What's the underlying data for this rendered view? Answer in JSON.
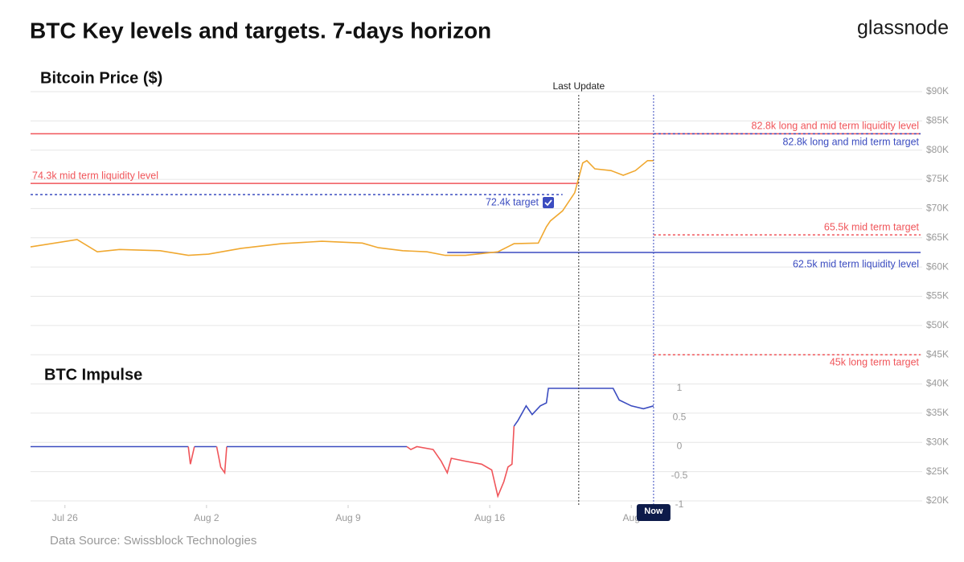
{
  "header": {
    "title": "BTC Key levels and targets. 7-days horizon",
    "brand": "glassnode"
  },
  "chart_data": [
    {
      "type": "line",
      "title": "Bitcoin Price ($)",
      "x": [
        -1.7,
        0.6,
        1.6,
        2.7,
        4.7,
        6.1,
        7.1,
        8.7,
        10.7,
        12.7,
        14.7,
        15.5,
        16.7,
        17.9,
        18.8,
        19.8,
        21.4,
        22.2,
        23.4,
        23.8,
        24.0,
        24.6,
        25.2,
        25.6,
        25.8,
        26.2,
        27.0,
        27.6,
        28.2,
        28.8,
        29.1
      ],
      "series": [
        {
          "color": "#f0a830",
          "values": [
            63450,
            64700,
            62600,
            63000,
            62800,
            62000,
            62200,
            63200,
            64000,
            64400,
            64100,
            63300,
            62800,
            62600,
            62000,
            62000,
            62600,
            64000,
            64100,
            66900,
            67900,
            69600,
            72700,
            77800,
            78200,
            76800,
            76500,
            75700,
            76500,
            78200,
            78200
          ]
        }
      ],
      "xlim": [
        -1.7,
        42.3
      ],
      "xticks": [
        {
          "value": 0,
          "label": "Jul 26"
        },
        {
          "value": 7,
          "label": "Aug 2"
        },
        {
          "value": 14,
          "label": "Aug 9"
        },
        {
          "value": 21,
          "label": "Aug 16"
        },
        {
          "value": 28,
          "label": "Aug"
        }
      ],
      "ylim": [
        20000,
        90000
      ],
      "yticks": [
        {
          "value": 90000,
          "label": "$90K"
        },
        {
          "value": 85000,
          "label": "$85K"
        },
        {
          "value": 80000,
          "label": "$80K"
        },
        {
          "value": 75000,
          "label": "$75K"
        },
        {
          "value": 70000,
          "label": "$70K"
        },
        {
          "value": 65000,
          "label": "$65K"
        },
        {
          "value": 60000,
          "label": "$60K"
        },
        {
          "value": 55000,
          "label": "$55K"
        },
        {
          "value": 50000,
          "label": "$50K"
        },
        {
          "value": 45000,
          "label": "$45K"
        },
        {
          "value": 40000,
          "label": "$40K"
        },
        {
          "value": 35000,
          "label": "$35K"
        },
        {
          "value": 30000,
          "label": "$30K"
        },
        {
          "value": 25000,
          "label": "$25K"
        },
        {
          "value": 20000,
          "label": "$20K"
        }
      ],
      "grid": true,
      "levels": [
        {
          "label": "82.8k long and mid term liquidity level",
          "value": 82800,
          "color": "#f0555a",
          "dashed": false,
          "from": -1.7,
          "to": 42.3
        },
        {
          "label": "82.8k long and mid term target",
          "value": 82800,
          "color": "#3b4cc0",
          "dashed": true,
          "from": 29.1,
          "to": 42.3
        },
        {
          "label": "74.3k mid term liquidity level",
          "value": 74300,
          "color": "#f0555a",
          "dashed": false,
          "from": -1.7,
          "to": 25.4
        },
        {
          "label": "72.4k target",
          "value": 72400,
          "color": "#3b4cc0",
          "dashed": true,
          "from": -1.7,
          "to": 24.6
        },
        {
          "label": "65.5k mid term target",
          "value": 65500,
          "color": "#f0555a",
          "dashed": true,
          "from": 29.1,
          "to": 42.3
        },
        {
          "label": "62.5k mid term liquidity level",
          "value": 62500,
          "color": "#3b4cc0",
          "dashed": false,
          "from": 18.9,
          "to": 42.3
        },
        {
          "label": "45k long term target",
          "value": 45000,
          "color": "#f0555a",
          "dashed": true,
          "from": 29.1,
          "to": 42.3
        }
      ],
      "markers": [
        {
          "label": "Last Update",
          "x": 25.4
        },
        {
          "label": "Now",
          "x": 29.1
        }
      ]
    },
    {
      "type": "line",
      "title": "BTC Impulse",
      "x": [
        -1.7,
        6.1,
        6.2,
        6.3,
        6.4,
        7.5,
        7.7,
        7.9,
        8.0,
        16.9,
        17.1,
        17.4,
        18.2,
        18.6,
        18.9,
        19.1,
        19.8,
        20.6,
        21.1,
        21.4,
        21.7,
        21.9,
        22.1,
        22.2,
        22.4,
        22.8,
        23.1,
        23.5,
        23.8,
        23.9,
        27.1,
        27.4,
        28.0,
        28.6,
        29.1
      ],
      "series": [
        {
          "color": "#3b4cc0",
          "negative_color": "#f0555a",
          "values": [
            0,
            0,
            -0.3,
            -0.15,
            0,
            0,
            -0.35,
            -0.45,
            0,
            0,
            -0.05,
            0,
            -0.05,
            -0.25,
            -0.45,
            -0.2,
            -0.25,
            -0.3,
            -0.4,
            -0.85,
            -0.6,
            -0.35,
            -0.3,
            0.35,
            0.45,
            0.7,
            0.55,
            0.7,
            0.75,
            1,
            1,
            0.8,
            0.7,
            0.65,
            0.7
          ]
        }
      ],
      "xlim": [
        -1.7,
        42.3
      ],
      "ylim": [
        -1,
        1
      ],
      "yticks": [
        1,
        0.5,
        0,
        -0.5,
        -1
      ]
    }
  ],
  "footer": {
    "source": "Data Source: Swissblock Technologies"
  }
}
